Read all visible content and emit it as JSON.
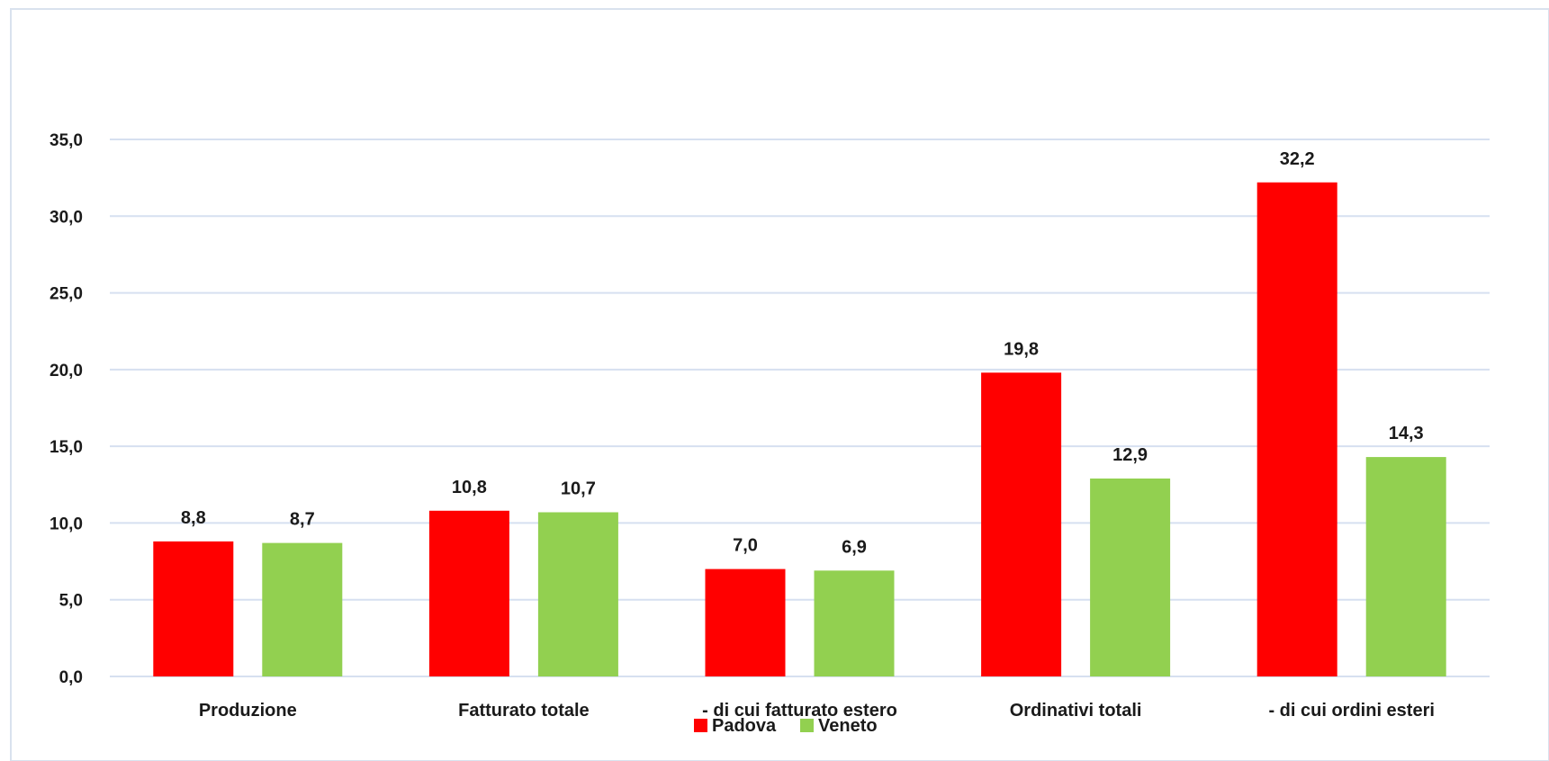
{
  "chart_data": {
    "type": "bar",
    "title": "",
    "xlabel": "",
    "ylabel": "",
    "categories": [
      "Produzione",
      "Fatturato totale",
      "- di cui fatturato estero",
      "Ordinativi totali",
      "- di cui ordini esteri"
    ],
    "series": [
      {
        "name": "Padova",
        "color": "#ff0000",
        "values": [
          8.8,
          10.8,
          7.0,
          19.8,
          32.2
        ],
        "labels": [
          "8,8",
          "10,8",
          "7,0",
          "19,8",
          "32,2"
        ]
      },
      {
        "name": "Veneto",
        "color": "#92d050",
        "values": [
          8.7,
          10.7,
          6.9,
          12.9,
          14.3
        ],
        "labels": [
          "8,7",
          "10,7",
          "6,9",
          "12,9",
          "14,3"
        ]
      }
    ],
    "ylim": [
      0,
      35
    ],
    "yticks": [
      0,
      5,
      10,
      15,
      20,
      25,
      30,
      35
    ],
    "ytick_labels": [
      "0,0",
      "5,0",
      "10,0",
      "15,0",
      "20,0",
      "25,0",
      "30,0",
      "35,0"
    ],
    "grid": true,
    "gridline_color": "#d6e0f0",
    "legend_position": "bottom-center",
    "frame_border_color": "#d9e2ee"
  }
}
